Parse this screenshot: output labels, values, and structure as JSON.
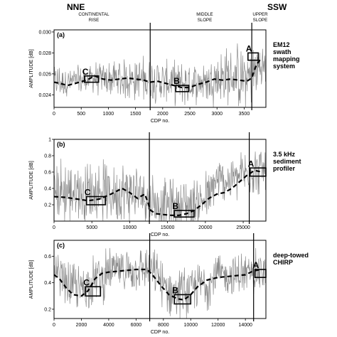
{
  "header": {
    "left": "NNE",
    "right": "SSW",
    "regions": [
      "CONTINENTAL RISE",
      "MIDDLE SLOPE",
      "UPPER SLOPE"
    ]
  },
  "chart_data": [
    {
      "panel": "(a)",
      "type": "line",
      "ylabel": "AMPLITUDE [dB]",
      "xlabel": "CDP no.",
      "xlim": [
        0,
        3900
      ],
      "ylim": [
        0.0228,
        0.0302
      ],
      "xticks": [
        0,
        500,
        1000,
        1500,
        2000,
        2500,
        3000,
        3500
      ],
      "yticks": [
        0.024,
        0.026,
        0.028,
        0.03
      ],
      "ytick_labels": [
        "0.024",
        "0.026",
        "0.028",
        "0.030"
      ],
      "annotation": [
        "EM12",
        "swath",
        "mapping",
        "system"
      ],
      "boundaries": [
        1770,
        3640
      ],
      "trend": {
        "x": [
          0,
          100,
          250,
          400,
          600,
          750,
          900,
          1050,
          1200,
          1350,
          1500,
          1650,
          1770,
          1900,
          2050,
          2200,
          2350,
          2500,
          2650,
          2800,
          2950,
          3100,
          3250,
          3400,
          3550,
          3640,
          3720,
          3800
        ],
        "y": [
          0.0252,
          0.0251,
          0.0249,
          0.0251,
          0.0254,
          0.0258,
          0.0255,
          0.0254,
          0.0255,
          0.0256,
          0.0255,
          0.0254,
          0.0252,
          0.0253,
          0.0251,
          0.0249,
          0.0247,
          0.0247,
          0.025,
          0.0252,
          0.0255,
          0.0254,
          0.0255,
          0.0254,
          0.0253,
          0.0256,
          0.0268,
          0.0274
        ]
      },
      "noise": {
        "base": [
          0.0255,
          0.0255,
          0.0254,
          0.0259
        ],
        "amp": [
          0.0018,
          0.0026,
          0.0024,
          0.0036
        ]
      },
      "boxes": [
        {
          "label": "C",
          "x": [
            560,
            820
          ],
          "y": [
            0.0252,
            0.0258
          ]
        },
        {
          "label": "B",
          "x": [
            2240,
            2480
          ],
          "y": [
            0.0243,
            0.0249
          ]
        },
        {
          "label": "A",
          "x": [
            3570,
            3760
          ],
          "y": [
            0.0273,
            0.028
          ]
        }
      ]
    },
    {
      "panel": "(b)",
      "type": "line",
      "ylabel": "AMPLITUDE [dB]",
      "xlabel": "CDP no.",
      "xlim": [
        0,
        28000
      ],
      "ylim": [
        0,
        1.0
      ],
      "xticks": [
        0,
        5000,
        10000,
        15000,
        20000,
        25000
      ],
      "yticks": [
        0.2,
        0.4,
        0.6,
        0.8,
        1
      ],
      "ytick_labels": [
        "0.2",
        "0.4",
        "0.6",
        "0.8",
        "1"
      ],
      "annotation": [
        "3.5 kHz",
        "sediment",
        "profiler"
      ],
      "boundaries": [
        12600,
        25800
      ],
      "trend": {
        "x": [
          0,
          1500,
          3000,
          4500,
          6000,
          7500,
          9000,
          10000,
          11000,
          12000,
          12800,
          13500,
          14500,
          15500,
          16500,
          17500,
          18500,
          19500,
          20500,
          21500,
          22500,
          23500,
          24500,
          25500,
          26500,
          27500
        ],
        "y": [
          0.3,
          0.29,
          0.27,
          0.25,
          0.27,
          0.33,
          0.4,
          0.35,
          0.28,
          0.33,
          0.13,
          0.09,
          0.08,
          0.07,
          0.07,
          0.09,
          0.13,
          0.2,
          0.28,
          0.33,
          0.35,
          0.4,
          0.48,
          0.56,
          0.62,
          0.6
        ]
      },
      "noise": {
        "base": [
          0.45,
          0.35,
          0.3,
          0.62
        ],
        "amp": [
          0.45,
          0.45,
          0.4,
          0.35
        ]
      },
      "boxes": [
        {
          "label": "C",
          "x": [
            4300,
            6800
          ],
          "y": [
            0.2,
            0.3
          ]
        },
        {
          "label": "B",
          "x": [
            15900,
            18500
          ],
          "y": [
            0.05,
            0.13
          ]
        },
        {
          "label": "A",
          "x": [
            25900,
            28000
          ],
          "y": [
            0.55,
            0.65
          ]
        }
      ]
    },
    {
      "panel": "(c)",
      "type": "line",
      "ylabel": "AMPLITUDE [dB]",
      "xlabel": "CDP no.",
      "xlim": [
        0,
        15500
      ],
      "ylim": [
        0.13,
        0.72
      ],
      "xticks": [
        0,
        2000,
        4000,
        6000,
        8000,
        10000,
        12000,
        14000
      ],
      "yticks": [
        0.2,
        0.4,
        0.6
      ],
      "ytick_labels": [
        "0.2",
        "0.4",
        "0.6"
      ],
      "annotation": [
        "deep-towed",
        "CHIRP"
      ],
      "boundaries": [
        7000,
        14600
      ],
      "trend": {
        "x": [
          0,
          400,
          900,
          1400,
          2000,
          2500,
          3000,
          3500,
          4000,
          5000,
          6000,
          6800,
          7200,
          7800,
          8400,
          9000,
          9500,
          10000,
          10500,
          11200,
          12000,
          13000,
          14000,
          14600,
          15200
        ],
        "y": [
          0.46,
          0.43,
          0.36,
          0.31,
          0.3,
          0.34,
          0.43,
          0.47,
          0.48,
          0.49,
          0.5,
          0.5,
          0.46,
          0.38,
          0.31,
          0.28,
          0.27,
          0.31,
          0.37,
          0.42,
          0.44,
          0.45,
          0.46,
          0.49,
          0.5
        ]
      },
      "noise": {
        "base": [
          0.42,
          0.5,
          0.38,
          0.47
        ],
        "amp": [
          0.22,
          0.2,
          0.22,
          0.2
        ]
      },
      "boxes": [
        {
          "label": "C",
          "x": [
            2300,
            3400
          ],
          "y": [
            0.3,
            0.37
          ]
        },
        {
          "label": "B",
          "x": [
            8800,
            10000
          ],
          "y": [
            0.24,
            0.31
          ]
        },
        {
          "label": "A",
          "x": [
            14700,
            15500
          ],
          "y": [
            0.44,
            0.5
          ]
        }
      ]
    }
  ]
}
